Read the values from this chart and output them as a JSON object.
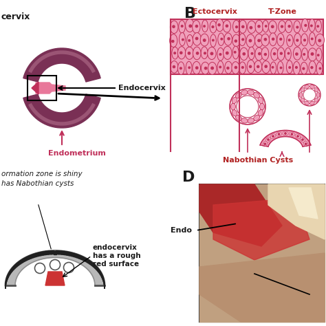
{
  "bg_color": "#ffffff",
  "panel_B_label": "B",
  "panel_D_label": "D",
  "label_ectocervix": "Ectocervix",
  "label_tzone": "T-Zone",
  "label_nabothian": "Nabothian Cysts",
  "label_endocervix": "Endocervix",
  "label_endometrium": "Endometrium",
  "label_endo": "Endo",
  "label_c_text1": "ormation zone is shiny",
  "label_c_text2": "has Nabothian cysts",
  "label_c_text3": "endocervix",
  "label_c_text4": "has a rough",
  "label_c_text5": "red surface",
  "pink_light": "#f5b8cc",
  "pink_mid": "#e8789a",
  "pink_dark": "#c0305a",
  "mauve": "#9b5575",
  "dark_mauve": "#7a3055",
  "darker_mauve": "#5a1535",
  "gray_light": "#b8b8b8",
  "gray_mid": "#909090",
  "gray_dark": "#505050",
  "text_dark": "#1a1a1a",
  "text_red": "#b02020",
  "cell_fill": "#f0a0bb",
  "cell_outline": "#c0305a",
  "white": "#ffffff"
}
